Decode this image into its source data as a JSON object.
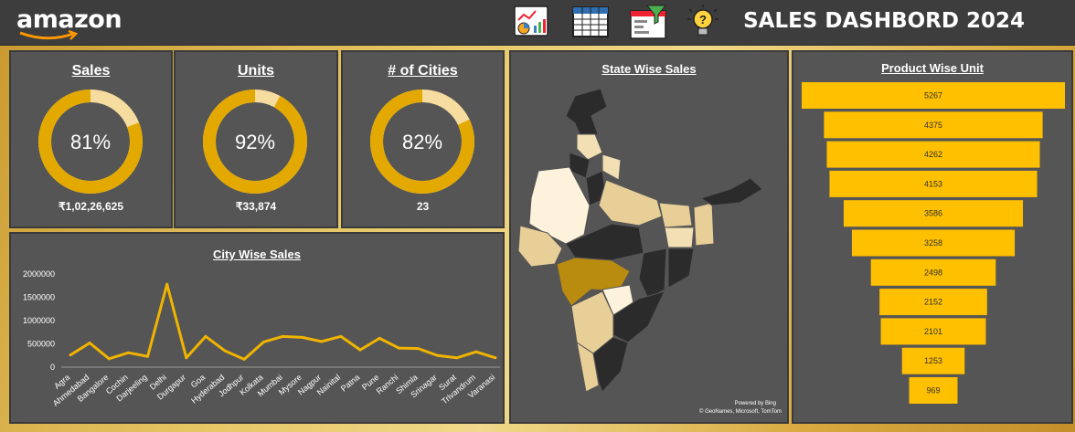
{
  "header": {
    "logo": "amazon",
    "title": "SALES DASHBORD 2024",
    "icons": [
      "dashboard-chart-icon",
      "table-icon",
      "filter-report-icon",
      "lightbulb-idea-icon"
    ]
  },
  "colors": {
    "accent": "#e3a900",
    "accent_light": "#f7dca0",
    "panel": "#555555",
    "topbar": "#3d3d3d",
    "bar": "#ffc000"
  },
  "kpis": [
    {
      "title": "Sales",
      "percent": "81%",
      "fraction": 0.81,
      "value": "₹1,02,26,625"
    },
    {
      "title": "Units",
      "percent": "92%",
      "fraction": 0.92,
      "value": "₹33,874"
    },
    {
      "title": "# of Cities",
      "percent": "82%",
      "fraction": 0.82,
      "value": "23"
    }
  ],
  "state_map": {
    "title": "State Wise Sales",
    "credit_line1": "Powered by Bing",
    "credit_line2": "© GeoNames, Microsoft, TomTom"
  },
  "chart_data": [
    {
      "type": "line",
      "title": "City Wise Sales",
      "categories": [
        "Agra",
        "Ahmedabad",
        "Bangalore",
        "Cochin",
        "Darjeeling",
        "Delhi",
        "Durgapur",
        "Goa",
        "Hyderabad",
        "Jodhpur",
        "Kolkata",
        "Mumbai",
        "Mysore",
        "Nagpur",
        "Nainital",
        "Patna",
        "Pune",
        "Ranchi",
        "Shimla",
        "Srinagar",
        "Surat",
        "Trivandrum",
        "Varanasi"
      ],
      "series": [
        {
          "values": [
            260000,
            520000,
            180000,
            310000,
            230000,
            1780000,
            200000,
            660000,
            350000,
            170000,
            540000,
            660000,
            640000,
            550000,
            660000,
            370000,
            620000,
            410000,
            400000,
            250000,
            200000,
            330000,
            200000
          ]
        }
      ],
      "yticks": [
        "0",
        "500000",
        "1000000",
        "1500000",
        "2000000"
      ],
      "ylim": [
        0,
        2000000
      ]
    },
    {
      "type": "bar",
      "orientation": "horizontal-funnel",
      "title": "Product Wise Unit",
      "values": [
        5267,
        4375,
        4262,
        4153,
        3586,
        3258,
        2498,
        2152,
        2101,
        1253,
        969
      ],
      "labels": [
        "5267",
        "4375",
        "4262",
        "4153",
        "3586",
        "3258",
        "2498",
        "2152",
        "2101",
        "1253",
        "969"
      ]
    }
  ]
}
